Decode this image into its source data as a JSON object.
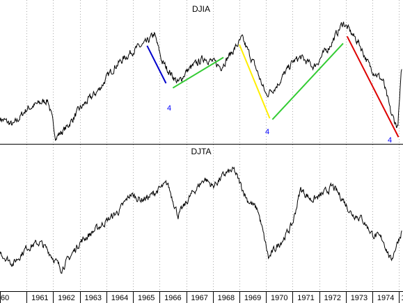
{
  "chart_data": [
    {
      "type": "line",
      "title": "DJIA",
      "x": [
        1960.0,
        1960.5,
        1961.0,
        1961.8,
        1962.1,
        1962.5,
        1963.0,
        1963.7,
        1964.3,
        1965.0,
        1965.5,
        1965.8,
        1966.1,
        1966.7,
        1967.0,
        1967.7,
        1968.3,
        1968.9,
        1969.1,
        1969.6,
        1970.0,
        1970.4,
        1971.0,
        1971.3,
        1971.8,
        1972.4,
        1972.9,
        1973.5,
        1973.9,
        1974.4,
        1974.7,
        1974.95,
        1975.1
      ],
      "y": [
        640,
        610,
        680,
        720,
        560,
        600,
        680,
        760,
        860,
        930,
        960,
        1000,
        880,
        790,
        840,
        900,
        860,
        950,
        980,
        860,
        740,
        780,
        880,
        900,
        860,
        950,
        1050,
        960,
        860,
        800,
        660,
        600,
        850
      ],
      "annotations": [
        {
          "label": "4",
          "color": "#0000ff"
        },
        {
          "label": "4",
          "color": "#0000ff"
        },
        {
          "label": "4",
          "color": "#0000ff"
        }
      ],
      "trendlines": [
        {
          "color": "#0000cc",
          "from": [
            1965.53,
            950
          ],
          "to": [
            1966.24,
            790
          ]
        },
        {
          "color": "#33cc33",
          "from": [
            1966.5,
            770
          ],
          "to": [
            1968.4,
            900
          ]
        },
        {
          "color": "#ffee00",
          "from": [
            1969.0,
            955
          ],
          "to": [
            1970.14,
            640
          ]
        },
        {
          "color": "#33cc33",
          "from": [
            1970.24,
            635
          ],
          "to": [
            1972.9,
            960
          ]
        },
        {
          "color": "#dd0000",
          "from": [
            1973.05,
            990
          ],
          "to": [
            1974.98,
            560
          ]
        }
      ],
      "ylim": [
        540,
        1080
      ]
    },
    {
      "type": "line",
      "title": "DJTA",
      "x": [
        1960.0,
        1960.5,
        1961.0,
        1961.5,
        1961.8,
        1962.3,
        1962.6,
        1963.0,
        1963.5,
        1964.0,
        1964.5,
        1964.9,
        1965.3,
        1965.6,
        1966.0,
        1966.3,
        1966.7,
        1967.2,
        1967.7,
        1968.0,
        1968.5,
        1968.8,
        1969.3,
        1969.7,
        1970.1,
        1970.3,
        1970.7,
        1971.0,
        1971.3,
        1971.7,
        1972.0,
        1972.5,
        1972.9,
        1973.2,
        1973.6,
        1974.0,
        1974.4,
        1974.7,
        1974.9,
        1975.1
      ],
      "y": [
        150,
        130,
        160,
        170,
        155,
        120,
        140,
        170,
        190,
        210,
        230,
        260,
        250,
        255,
        270,
        280,
        220,
        260,
        290,
        275,
        300,
        305,
        250,
        230,
        140,
        155,
        180,
        205,
        270,
        250,
        255,
        275,
        250,
        225,
        215,
        185,
        175,
        135,
        165,
        190
      ],
      "ylim": [
        90,
        330
      ]
    }
  ],
  "x_axis": {
    "tick_labels": [
      "60",
      "1961",
      "1962",
      "1963",
      "1964",
      "1965",
      "1966",
      "1967",
      "1968",
      "1969",
      "1970",
      "1971",
      "1972",
      "1973",
      "1974",
      "19"
    ]
  }
}
